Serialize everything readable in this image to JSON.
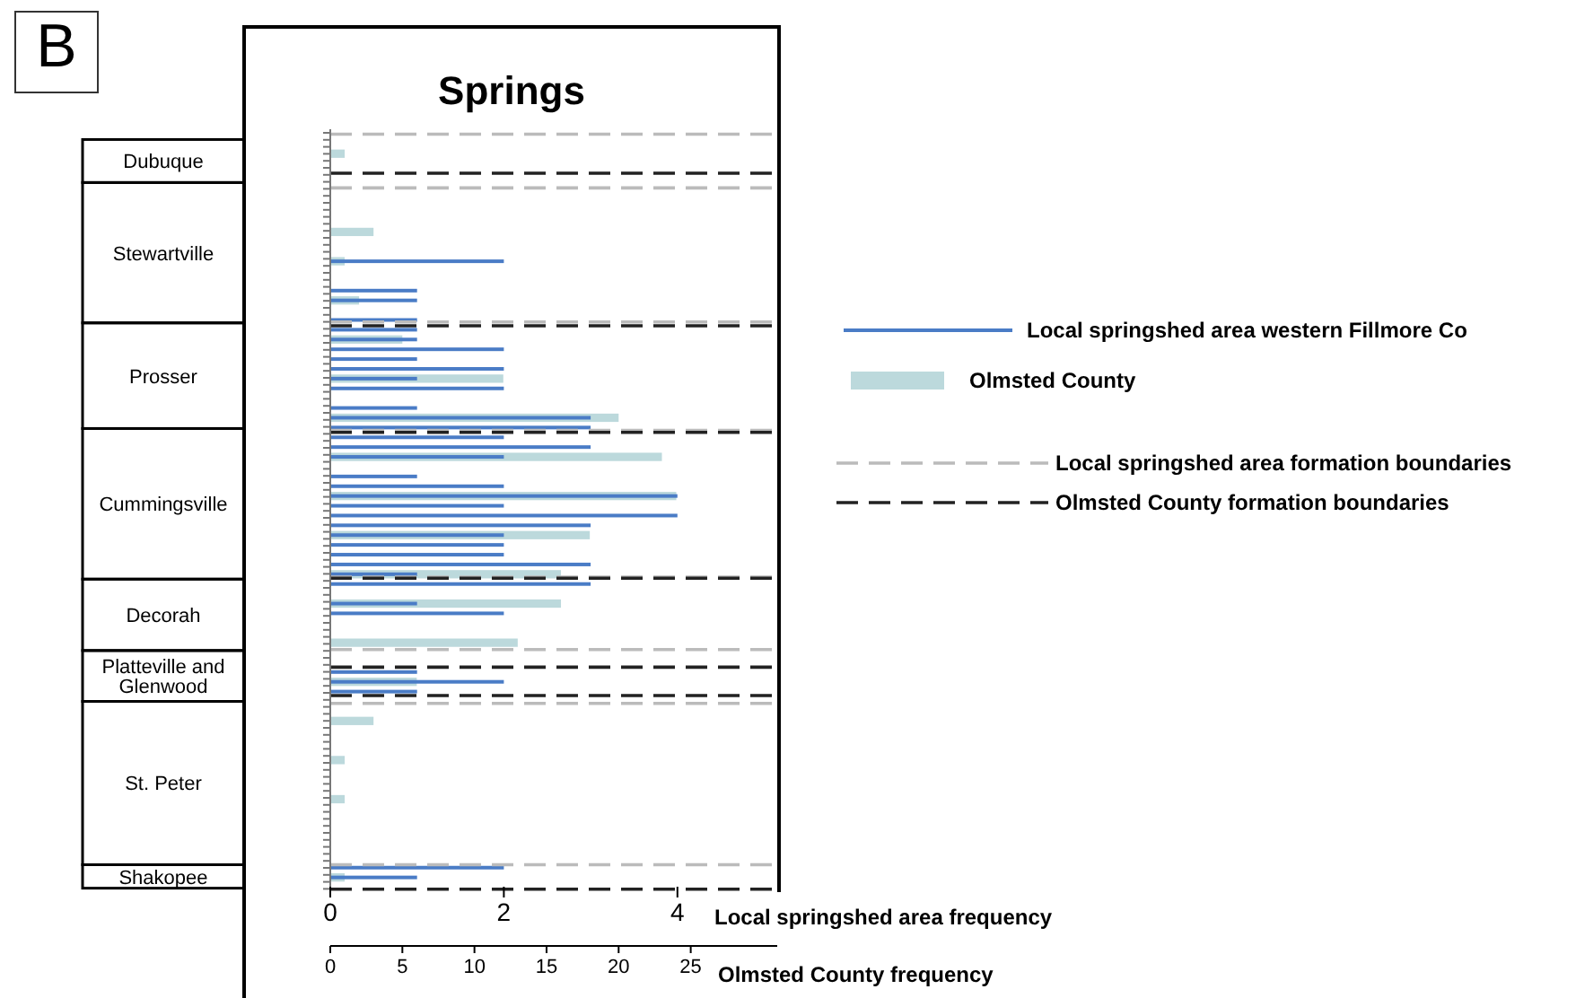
{
  "chart_data": {
    "type": "bar",
    "orientation": "horizontal",
    "title": "Springs",
    "xlabel": "Local springshed area frequency",
    "x2label": "Olmsted County frequency",
    "xlim": [
      0,
      5.15
    ],
    "xticks": [
      0,
      2,
      4
    ],
    "x2lim": [
      0,
      31
    ],
    "x2ticks": [
      0,
      5,
      10,
      15,
      20,
      25
    ],
    "categories": [
      null,
      null,
      null,
      null,
      null,
      null,
      null,
      null,
      null,
      null,
      null,
      null,
      null,
      null,
      null,
      null,
      null,
      null,
      null,
      null,
      null,
      null,
      null,
      null,
      null,
      null,
      null,
      null,
      null,
      null,
      null,
      null,
      null,
      null,
      null,
      null,
      null,
      null,
      null,
      null,
      null,
      null,
      null,
      null,
      null,
      null,
      null,
      null,
      null,
      null,
      null,
      null,
      null,
      null,
      null,
      null,
      null,
      null,
      null,
      null,
      null,
      null,
      null,
      null,
      null,
      null,
      null,
      null,
      null,
      null,
      null,
      null,
      null,
      null,
      null,
      null,
      null,
      null
    ],
    "series": [
      {
        "name": "Local springshed area western Fillmore Co",
        "color": "#4a7cc6",
        "values": [
          null,
          null,
          null,
          null,
          null,
          null,
          null,
          null,
          null,
          null,
          null,
          null,
          null,
          2,
          null,
          null,
          1,
          1,
          null,
          1,
          1,
          1,
          2,
          1,
          2,
          1,
          2,
          null,
          1,
          3,
          3,
          2,
          3,
          2,
          null,
          1,
          2,
          4,
          2,
          4,
          3,
          2,
          2,
          2,
          3,
          1,
          3,
          null,
          1,
          2,
          null,
          null,
          null,
          null,
          null,
          1,
          2,
          1,
          null,
          null,
          null,
          null,
          null,
          null,
          null,
          null,
          null,
          null,
          null,
          null,
          null,
          null,
          null,
          null,
          null,
          2,
          1,
          null
        ]
      },
      {
        "name": "Olmsted County",
        "color": "#bcd9dc",
        "axis": "x2",
        "values": [
          null,
          null,
          1,
          null,
          null,
          null,
          null,
          null,
          null,
          null,
          3,
          null,
          null,
          1,
          null,
          null,
          null,
          2,
          null,
          null,
          null,
          5,
          null,
          null,
          null,
          12,
          null,
          null,
          null,
          20,
          null,
          null,
          null,
          23,
          null,
          null,
          null,
          24,
          null,
          null,
          null,
          18,
          null,
          null,
          null,
          16,
          null,
          null,
          16,
          null,
          null,
          null,
          13,
          null,
          null,
          null,
          6,
          null,
          null,
          null,
          3,
          null,
          null,
          null,
          1,
          null,
          null,
          null,
          1,
          null,
          null,
          null,
          null,
          null,
          null,
          null,
          1,
          null
        ]
      }
    ],
    "annotations": [
      "B",
      "Dubuque",
      "Stewartville",
      "Prosser",
      "Cummingsville",
      "Decorah",
      "Platteville and Glenwood",
      "St. Peter",
      "Shakopee",
      "Local springshed area formation boundaries",
      "Olmsted County formation boundaries"
    ],
    "legend": "right"
  }
}
